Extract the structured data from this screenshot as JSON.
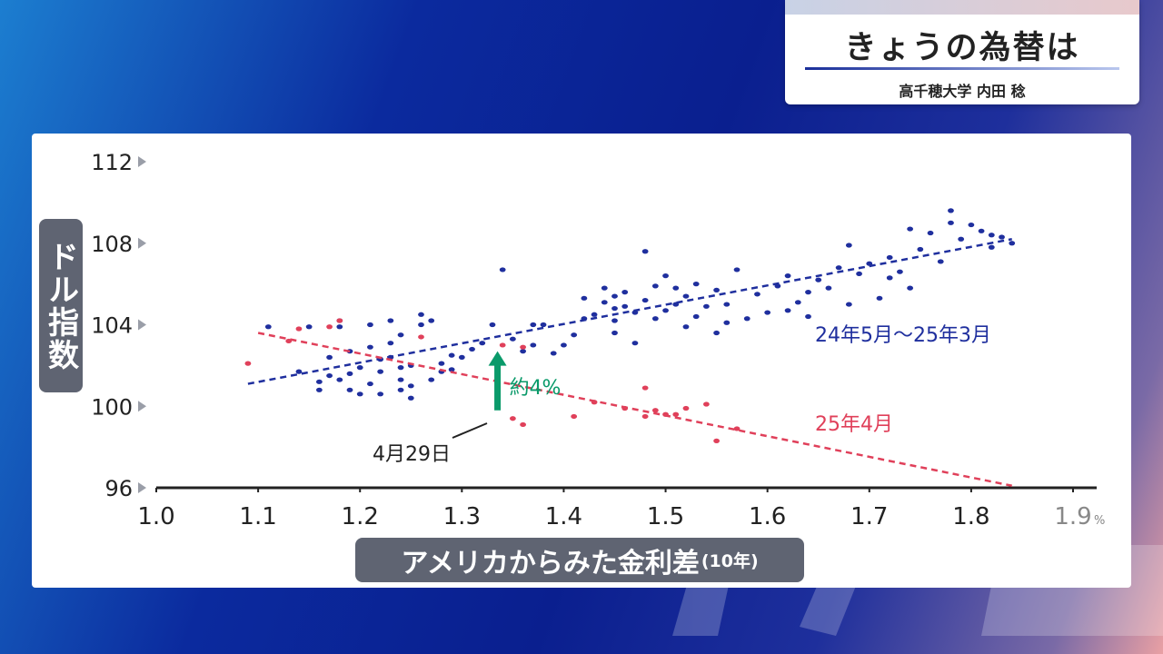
{
  "header": {
    "title": "きょうの為替は",
    "subtitle": "高千穂大学 内田 稔"
  },
  "colors": {
    "series_2024": "#1f2f9e",
    "series_2025": "#e0405a",
    "annotation": "#0a9a6a",
    "axis": "#222222"
  },
  "chart_data": {
    "type": "scatter",
    "title": "",
    "xlabel": "アメリカからみた金利差",
    "xlabel_unit": "(10年)",
    "ylabel": "ドル指数",
    "xlim": [
      1.0,
      1.9
    ],
    "ylim": [
      96,
      112
    ],
    "x_ticks": [
      "1.0",
      "1.1",
      "1.2",
      "1.3",
      "1.4",
      "1.5",
      "1.6",
      "1.7",
      "1.8",
      "1.9"
    ],
    "x_tick_suffix": "%",
    "y_ticks": [
      "96",
      "100",
      "104",
      "108",
      "112"
    ],
    "grid": false,
    "series": [
      {
        "name": "24年5月～25年3月",
        "color": "#1f2f9e",
        "trend": {
          "x": [
            1.09,
            1.84
          ],
          "y": [
            101.1,
            108.2
          ]
        },
        "points": [
          [
            1.11,
            103.9
          ],
          [
            1.14,
            101.7
          ],
          [
            1.15,
            103.9
          ],
          [
            1.16,
            101.2
          ],
          [
            1.16,
            100.8
          ],
          [
            1.17,
            101.5
          ],
          [
            1.17,
            102.4
          ],
          [
            1.18,
            101.3
          ],
          [
            1.18,
            103.9
          ],
          [
            1.18,
            104.2
          ],
          [
            1.19,
            100.8
          ],
          [
            1.19,
            101.6
          ],
          [
            1.19,
            102.7
          ],
          [
            1.2,
            101.9
          ],
          [
            1.2,
            100.6
          ],
          [
            1.21,
            101.1
          ],
          [
            1.21,
            102.9
          ],
          [
            1.21,
            104.0
          ],
          [
            1.22,
            100.6
          ],
          [
            1.22,
            101.7
          ],
          [
            1.22,
            102.3
          ],
          [
            1.23,
            102.4
          ],
          [
            1.23,
            103.1
          ],
          [
            1.23,
            104.2
          ],
          [
            1.24,
            100.8
          ],
          [
            1.24,
            101.3
          ],
          [
            1.24,
            101.9
          ],
          [
            1.24,
            103.5
          ],
          [
            1.25,
            100.4
          ],
          [
            1.25,
            101.0
          ],
          [
            1.25,
            102.0
          ],
          [
            1.26,
            104.0
          ],
          [
            1.26,
            104.5
          ],
          [
            1.27,
            101.3
          ],
          [
            1.27,
            104.2
          ],
          [
            1.28,
            101.7
          ],
          [
            1.28,
            102.1
          ],
          [
            1.29,
            101.8
          ],
          [
            1.29,
            102.5
          ],
          [
            1.3,
            102.4
          ],
          [
            1.31,
            102.8
          ],
          [
            1.32,
            103.1
          ],
          [
            1.33,
            104.0
          ],
          [
            1.34,
            106.7
          ],
          [
            1.35,
            103.3
          ],
          [
            1.36,
            102.7
          ],
          [
            1.37,
            104.0
          ],
          [
            1.37,
            103.0
          ],
          [
            1.38,
            104.0
          ],
          [
            1.39,
            102.6
          ],
          [
            1.4,
            103.0
          ],
          [
            1.41,
            103.5
          ],
          [
            1.42,
            104.3
          ],
          [
            1.42,
            105.3
          ],
          [
            1.43,
            104.5
          ],
          [
            1.44,
            105.1
          ],
          [
            1.44,
            105.8
          ],
          [
            1.45,
            103.6
          ],
          [
            1.45,
            104.2
          ],
          [
            1.45,
            104.8
          ],
          [
            1.45,
            105.4
          ],
          [
            1.46,
            104.9
          ],
          [
            1.46,
            105.6
          ],
          [
            1.47,
            103.1
          ],
          [
            1.47,
            104.6
          ],
          [
            1.48,
            105.2
          ],
          [
            1.48,
            107.6
          ],
          [
            1.49,
            104.3
          ],
          [
            1.49,
            105.9
          ],
          [
            1.5,
            104.7
          ],
          [
            1.5,
            106.4
          ],
          [
            1.51,
            105.0
          ],
          [
            1.51,
            105.8
          ],
          [
            1.52,
            103.9
          ],
          [
            1.52,
            105.4
          ],
          [
            1.53,
            104.4
          ],
          [
            1.53,
            106.0
          ],
          [
            1.54,
            104.9
          ],
          [
            1.55,
            103.6
          ],
          [
            1.55,
            105.7
          ],
          [
            1.56,
            104.1
          ],
          [
            1.56,
            105.0
          ],
          [
            1.57,
            106.7
          ],
          [
            1.58,
            104.3
          ],
          [
            1.59,
            105.5
          ],
          [
            1.6,
            104.6
          ],
          [
            1.61,
            105.9
          ],
          [
            1.62,
            104.7
          ],
          [
            1.62,
            106.4
          ],
          [
            1.63,
            105.1
          ],
          [
            1.64,
            104.4
          ],
          [
            1.64,
            105.6
          ],
          [
            1.65,
            106.2
          ],
          [
            1.66,
            105.8
          ],
          [
            1.67,
            106.8
          ],
          [
            1.68,
            107.9
          ],
          [
            1.68,
            105.0
          ],
          [
            1.69,
            106.5
          ],
          [
            1.7,
            107.0
          ],
          [
            1.71,
            105.3
          ],
          [
            1.72,
            106.3
          ],
          [
            1.72,
            107.3
          ],
          [
            1.73,
            106.6
          ],
          [
            1.74,
            105.8
          ],
          [
            1.74,
            108.7
          ],
          [
            1.75,
            107.7
          ],
          [
            1.76,
            108.5
          ],
          [
            1.77,
            107.1
          ],
          [
            1.78,
            109.0
          ],
          [
            1.78,
            109.6
          ],
          [
            1.79,
            108.2
          ],
          [
            1.8,
            108.9
          ],
          [
            1.81,
            108.6
          ],
          [
            1.82,
            107.8
          ],
          [
            1.82,
            108.4
          ],
          [
            1.83,
            108.3
          ],
          [
            1.84,
            108.0
          ]
        ]
      },
      {
        "name": "25年4月",
        "color": "#e0405a",
        "trend": {
          "x": [
            1.1,
            1.84
          ],
          "y": [
            103.6,
            96.1
          ]
        },
        "points": [
          [
            1.09,
            102.1
          ],
          [
            1.13,
            103.2
          ],
          [
            1.14,
            103.8
          ],
          [
            1.17,
            103.9
          ],
          [
            1.18,
            104.2
          ],
          [
            1.26,
            103.4
          ],
          [
            1.34,
            103.0
          ],
          [
            1.35,
            99.4
          ],
          [
            1.36,
            99.1
          ],
          [
            1.36,
            102.9
          ],
          [
            1.41,
            99.5
          ],
          [
            1.43,
            100.2
          ],
          [
            1.46,
            99.9
          ],
          [
            1.48,
            99.5
          ],
          [
            1.48,
            100.9
          ],
          [
            1.49,
            99.8
          ],
          [
            1.5,
            99.6
          ],
          [
            1.51,
            99.6
          ],
          [
            1.52,
            99.9
          ],
          [
            1.54,
            100.1
          ],
          [
            1.55,
            98.3
          ],
          [
            1.57,
            98.9
          ]
        ]
      }
    ],
    "annotations": {
      "arrow_label": "約4%",
      "arrow_x": 1.335,
      "arrow_from": 99.8,
      "arrow_to": 102.7,
      "date_label": "4月29日"
    }
  }
}
